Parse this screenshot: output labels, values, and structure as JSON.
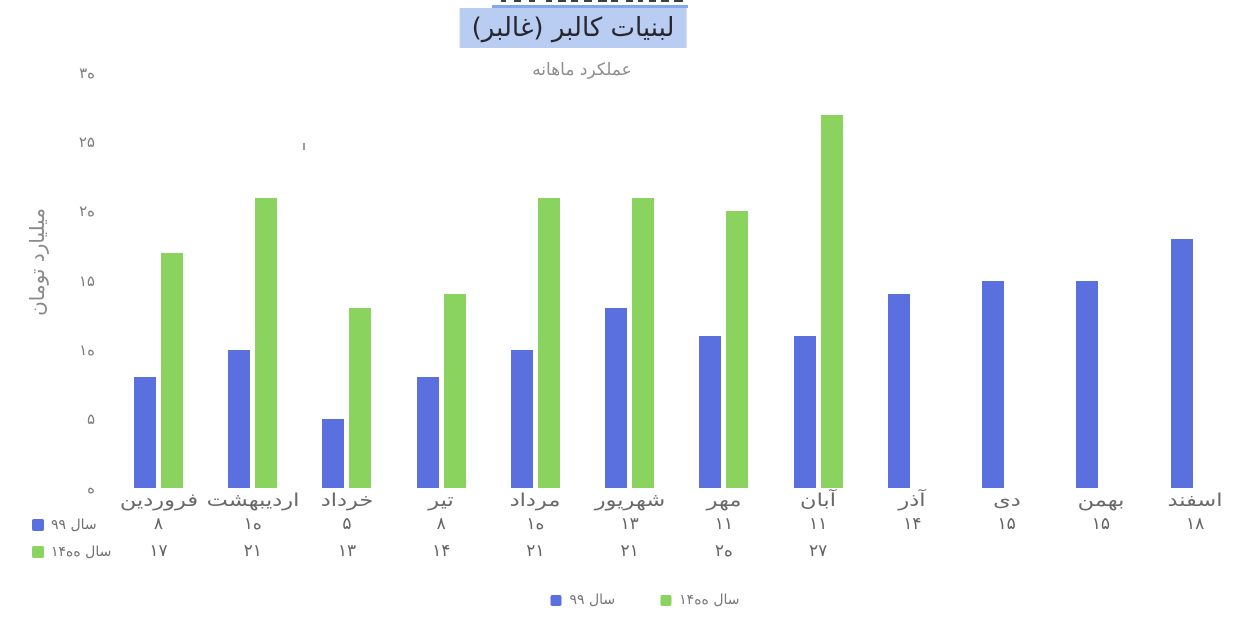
{
  "chart_data": {
    "type": "bar",
    "title": "لبنیات کالبر (غالبر)",
    "subtitle": "عملکرد ماهانه",
    "ylabel": "میلیارد تومان",
    "categories": [
      "فروردین",
      "اردیبهشت",
      "خرداد",
      "تیر",
      "مرداد",
      "شهریور",
      "مهر",
      "آبان",
      "آذر",
      "دی",
      "بهمن",
      "اسفند"
    ],
    "series": [
      {
        "name": "سال ۹۹",
        "color": "#5a70de",
        "values": [
          8,
          10,
          5,
          8,
          10,
          13,
          11,
          11,
          14,
          15,
          15,
          18
        ],
        "labels": [
          "۸",
          "۱۰",
          "۵",
          "۸",
          "۱۰",
          "۱۳",
          "۱۱",
          "۱۱",
          "۱۴",
          "۱۵",
          "۱۵",
          "۱۸"
        ]
      },
      {
        "name": "سال ۱۴۰۰",
        "color": "#8bd35f",
        "values": [
          17,
          21,
          13,
          14,
          21,
          21,
          20,
          27,
          null,
          null,
          null,
          null
        ],
        "labels": [
          "۱۷",
          "۲۱",
          "۱۳",
          "۱۴",
          "۲۱",
          "۲۱",
          "۲۰",
          "۲۷",
          "",
          "",
          "",
          ""
        ]
      }
    ],
    "y_ticks": {
      "values": [
        0,
        5,
        10,
        15,
        20,
        25,
        30
      ],
      "labels": [
        "۰",
        "۵",
        "۱۰",
        "۱۵",
        "۲۰",
        "۲۵",
        "۳۰"
      ]
    },
    "ylim": [
      0,
      30
    ],
    "grid": false,
    "legend_position": "bottom",
    "title_highlight_color": "#b9cdf2"
  }
}
